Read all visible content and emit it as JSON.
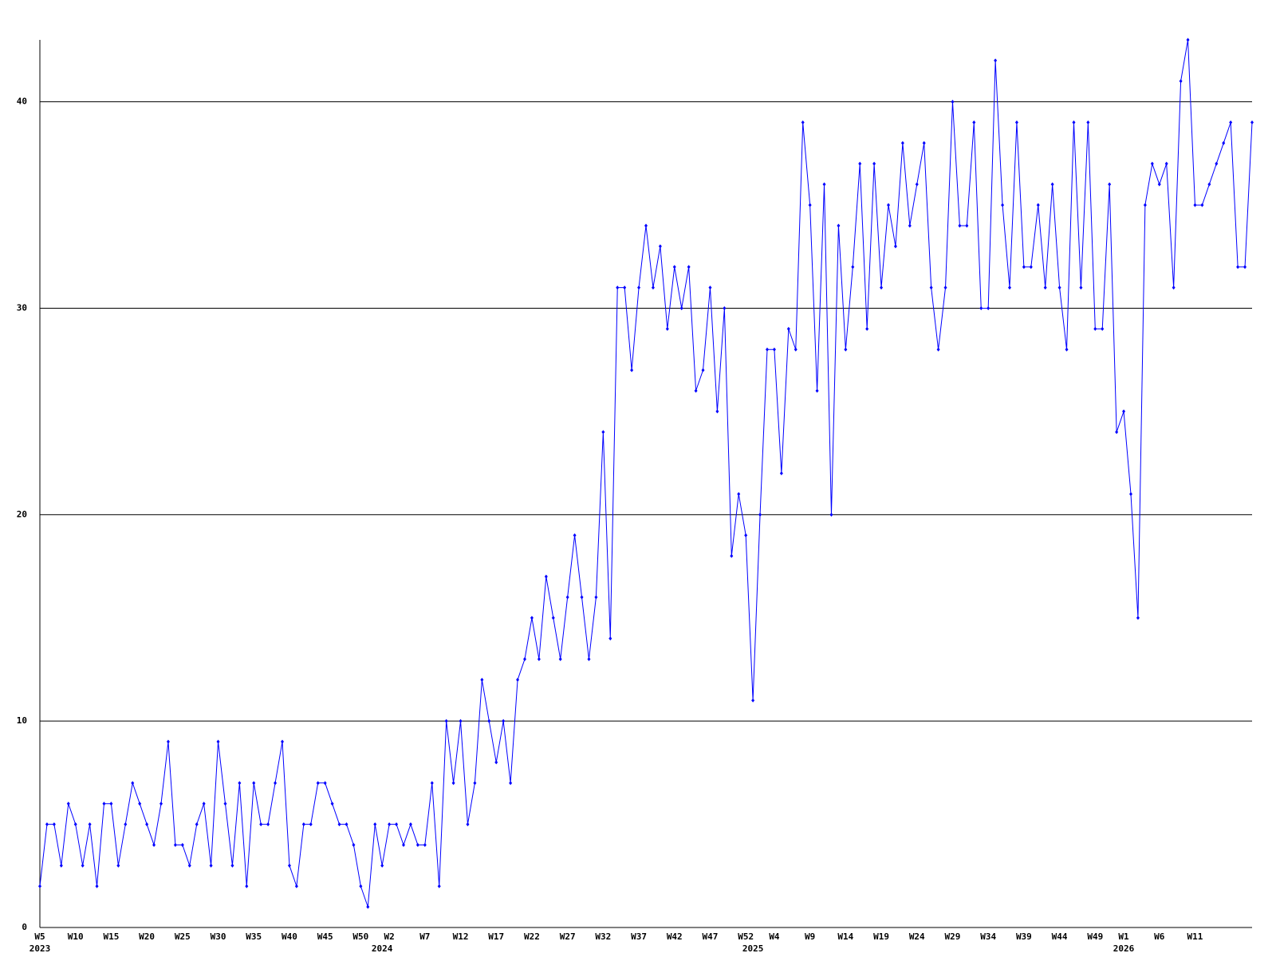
{
  "chart_data": {
    "type": "line",
    "color": "#0000ff",
    "grid": true,
    "ylim": [
      0,
      43
    ],
    "yticks": [
      0,
      10,
      20,
      30,
      40
    ],
    "categories": [
      "W5",
      null,
      null,
      null,
      null,
      "W10",
      null,
      null,
      null,
      null,
      "W15",
      null,
      null,
      null,
      null,
      "W20",
      null,
      null,
      null,
      null,
      "W25",
      null,
      null,
      null,
      null,
      "W30",
      null,
      null,
      null,
      null,
      "W35",
      null,
      null,
      null,
      null,
      "W40",
      null,
      null,
      null,
      null,
      "W45",
      null,
      null,
      null,
      null,
      "W50",
      null,
      null,
      null,
      "W2",
      null,
      null,
      null,
      null,
      "W7",
      null,
      null,
      null,
      null,
      "W12",
      null,
      null,
      null,
      null,
      "W17",
      null,
      null,
      null,
      null,
      "W22",
      null,
      null,
      null,
      null,
      "W27",
      null,
      null,
      null,
      null,
      "W32",
      null,
      null,
      null,
      null,
      "W37",
      null,
      null,
      null,
      null,
      "W42",
      null,
      null,
      null,
      null,
      "W47",
      null,
      null,
      null,
      null,
      "W52",
      null,
      null,
      null,
      "W4",
      null,
      null,
      null,
      null,
      "W9",
      null,
      null,
      null,
      null,
      "W14",
      null,
      null,
      null,
      null,
      "W19",
      null,
      null,
      null,
      null,
      "W24",
      null,
      null,
      null,
      null,
      "W29",
      null,
      null,
      null,
      null,
      "W34",
      null,
      null,
      null,
      null,
      "W39",
      null,
      null,
      null,
      null,
      "W44",
      null,
      null,
      null,
      null,
      "W49",
      null,
      null,
      null,
      "W1",
      null,
      null,
      null,
      null,
      "W6",
      null,
      null,
      null,
      null,
      "W11",
      null,
      null,
      null,
      null,
      null,
      null,
      null,
      null
    ],
    "years": [
      "2023",
      null,
      null,
      null,
      null,
      null,
      null,
      null,
      null,
      null,
      null,
      null,
      null,
      null,
      null,
      null,
      null,
      null,
      null,
      null,
      null,
      null,
      null,
      null,
      null,
      null,
      null,
      null,
      null,
      null,
      null,
      null,
      null,
      null,
      null,
      null,
      null,
      null,
      null,
      null,
      null,
      null,
      null,
      null,
      null,
      null,
      null,
      null,
      "2024",
      null,
      null,
      null,
      null,
      null,
      null,
      null,
      null,
      null,
      null,
      null,
      null,
      null,
      null,
      null,
      null,
      null,
      null,
      null,
      null,
      null,
      null,
      null,
      null,
      null,
      null,
      null,
      null,
      null,
      null,
      null,
      null,
      null,
      null,
      null,
      null,
      null,
      null,
      null,
      null,
      null,
      null,
      null,
      null,
      null,
      null,
      null,
      null,
      null,
      null,
      null,
      "2025",
      null,
      null,
      null,
      null,
      null,
      null,
      null,
      null,
      null,
      null,
      null,
      null,
      null,
      null,
      null,
      null,
      null,
      null,
      null,
      null,
      null,
      null,
      null,
      null,
      null,
      null,
      null,
      null,
      null,
      null,
      null,
      null,
      null,
      null,
      null,
      null,
      null,
      null,
      null,
      null,
      null,
      null,
      null,
      null,
      null,
      null,
      null,
      null,
      null,
      null,
      null,
      "2026",
      null,
      null,
      null,
      null,
      null,
      null,
      null,
      null,
      null,
      null,
      null,
      null,
      null,
      null,
      null,
      null,
      null,
      null
    ],
    "values": [
      2,
      5,
      5,
      3,
      6,
      5,
      3,
      5,
      2,
      6,
      6,
      3,
      5,
      7,
      6,
      5,
      4,
      6,
      9,
      4,
      4,
      3,
      5,
      6,
      3,
      9,
      6,
      3,
      7,
      2,
      7,
      5,
      5,
      7,
      9,
      3,
      2,
      5,
      5,
      7,
      7,
      6,
      5,
      5,
      4,
      2,
      1,
      5,
      3,
      5,
      5,
      4,
      5,
      4,
      4,
      7,
      2,
      10,
      7,
      10,
      5,
      7,
      12,
      10,
      8,
      10,
      7,
      12,
      13,
      15,
      13,
      17,
      15,
      13,
      16,
      19,
      16,
      13,
      16,
      24,
      14,
      31,
      31,
      27,
      31,
      34,
      31,
      33,
      29,
      32,
      30,
      32,
      26,
      27,
      31,
      25,
      30,
      18,
      21,
      19,
      11,
      20,
      28,
      28,
      22,
      29,
      28,
      39,
      35,
      26,
      36,
      20,
      34,
      28,
      32,
      37,
      29,
      37,
      31,
      35,
      33,
      38,
      34,
      36,
      38,
      31,
      28,
      31,
      40,
      34,
      34,
      39,
      30,
      30,
      42,
      35,
      31,
      39,
      32,
      32,
      35,
      31,
      36,
      31,
      28,
      39,
      31,
      39,
      29,
      29,
      36,
      24,
      25,
      21,
      15,
      35,
      37,
      36,
      37,
      31,
      41,
      43,
      35,
      35,
      36,
      37,
      38,
      39,
      32,
      32,
      39
    ]
  }
}
